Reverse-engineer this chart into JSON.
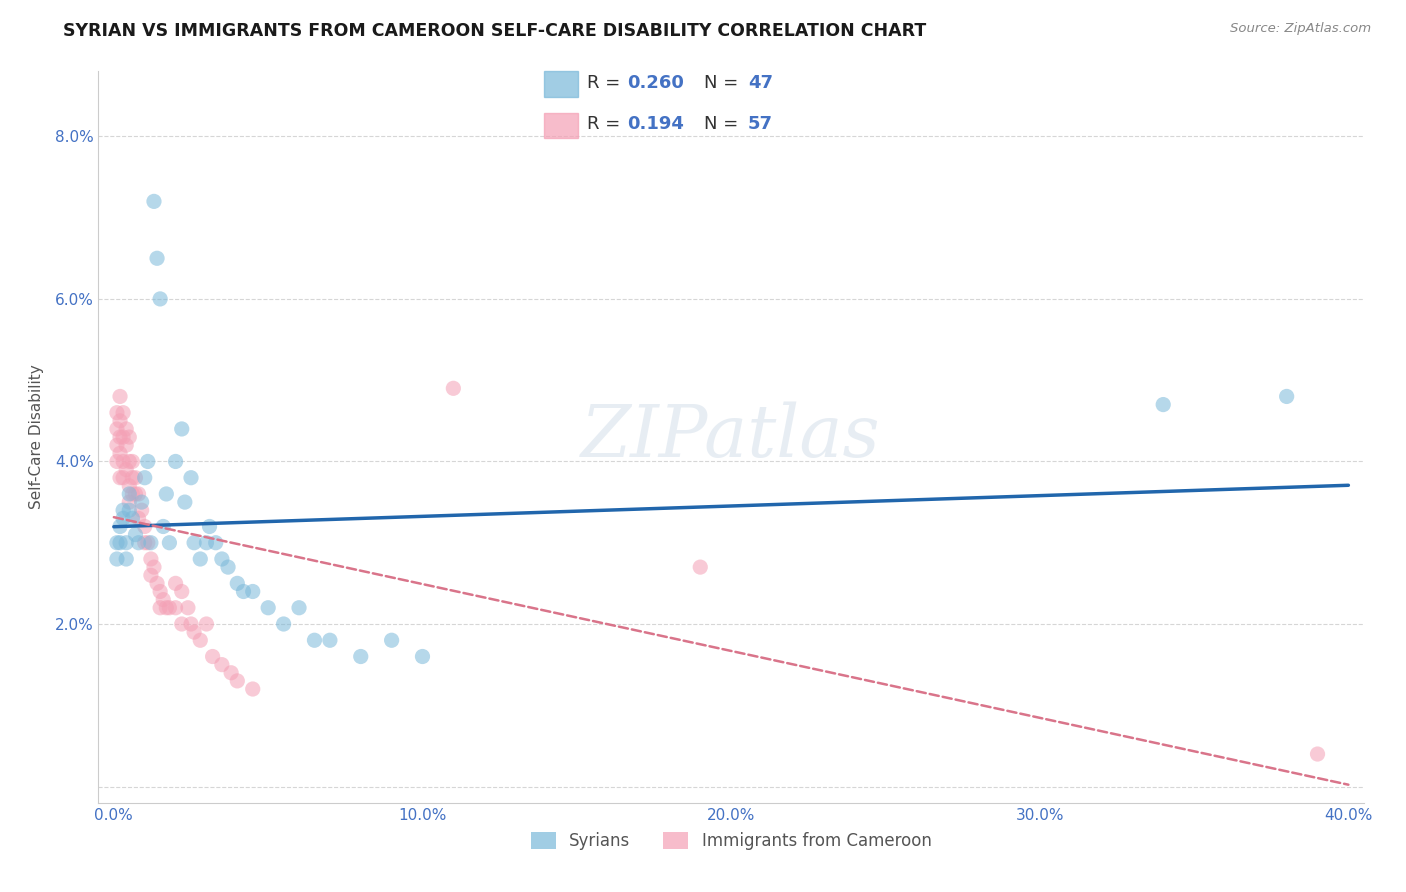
{
  "title": "SYRIAN VS IMMIGRANTS FROM CAMEROON SELF-CARE DISABILITY CORRELATION CHART",
  "source": "Source: ZipAtlas.com",
  "xlabel": "",
  "ylabel": "Self-Care Disability",
  "xlim": [
    -0.005,
    0.405
  ],
  "ylim": [
    -0.002,
    0.088
  ],
  "xticks": [
    0.0,
    0.1,
    0.2,
    0.3,
    0.4
  ],
  "xticklabels": [
    "0.0%",
    "10.0%",
    "20.0%",
    "30.0%",
    "40.0%"
  ],
  "yticks": [
    0.0,
    0.02,
    0.04,
    0.06,
    0.08
  ],
  "yticklabels": [
    "",
    "2.0%",
    "4.0%",
    "6.0%",
    "8.0%"
  ],
  "syrian_color": "#7ab8d9",
  "cameroon_color": "#f4a0b5",
  "syrian_line_color": "#2166ac",
  "cameroon_line_color": "#d9748a",
  "R_syrian": 0.26,
  "N_syrian": 47,
  "R_cameroon": 0.194,
  "N_cameroon": 57,
  "watermark_text": "ZIPatlas",
  "background_color": "#ffffff",
  "grid_color": "#cccccc",
  "syrian_points": [
    [
      0.001,
      0.03
    ],
    [
      0.001,
      0.028
    ],
    [
      0.002,
      0.032
    ],
    [
      0.002,
      0.03
    ],
    [
      0.003,
      0.034
    ],
    [
      0.003,
      0.033
    ],
    [
      0.004,
      0.03
    ],
    [
      0.004,
      0.028
    ],
    [
      0.005,
      0.036
    ],
    [
      0.005,
      0.034
    ],
    [
      0.006,
      0.033
    ],
    [
      0.007,
      0.031
    ],
    [
      0.008,
      0.03
    ],
    [
      0.009,
      0.035
    ],
    [
      0.01,
      0.038
    ],
    [
      0.011,
      0.04
    ],
    [
      0.012,
      0.03
    ],
    [
      0.013,
      0.072
    ],
    [
      0.014,
      0.065
    ],
    [
      0.015,
      0.06
    ],
    [
      0.016,
      0.032
    ],
    [
      0.017,
      0.036
    ],
    [
      0.018,
      0.03
    ],
    [
      0.02,
      0.04
    ],
    [
      0.022,
      0.044
    ],
    [
      0.023,
      0.035
    ],
    [
      0.025,
      0.038
    ],
    [
      0.026,
      0.03
    ],
    [
      0.028,
      0.028
    ],
    [
      0.03,
      0.03
    ],
    [
      0.031,
      0.032
    ],
    [
      0.033,
      0.03
    ],
    [
      0.035,
      0.028
    ],
    [
      0.037,
      0.027
    ],
    [
      0.04,
      0.025
    ],
    [
      0.042,
      0.024
    ],
    [
      0.045,
      0.024
    ],
    [
      0.05,
      0.022
    ],
    [
      0.055,
      0.02
    ],
    [
      0.06,
      0.022
    ],
    [
      0.065,
      0.018
    ],
    [
      0.07,
      0.018
    ],
    [
      0.08,
      0.016
    ],
    [
      0.09,
      0.018
    ],
    [
      0.1,
      0.016
    ],
    [
      0.34,
      0.047
    ],
    [
      0.38,
      0.048
    ]
  ],
  "cameroon_points": [
    [
      0.001,
      0.044
    ],
    [
      0.001,
      0.046
    ],
    [
      0.001,
      0.042
    ],
    [
      0.001,
      0.04
    ],
    [
      0.002,
      0.048
    ],
    [
      0.002,
      0.045
    ],
    [
      0.002,
      0.043
    ],
    [
      0.002,
      0.041
    ],
    [
      0.002,
      0.038
    ],
    [
      0.003,
      0.046
    ],
    [
      0.003,
      0.043
    ],
    [
      0.003,
      0.04
    ],
    [
      0.003,
      0.038
    ],
    [
      0.004,
      0.044
    ],
    [
      0.004,
      0.042
    ],
    [
      0.004,
      0.039
    ],
    [
      0.005,
      0.043
    ],
    [
      0.005,
      0.04
    ],
    [
      0.005,
      0.037
    ],
    [
      0.005,
      0.035
    ],
    [
      0.006,
      0.04
    ],
    [
      0.006,
      0.038
    ],
    [
      0.006,
      0.036
    ],
    [
      0.007,
      0.038
    ],
    [
      0.007,
      0.036
    ],
    [
      0.008,
      0.036
    ],
    [
      0.008,
      0.033
    ],
    [
      0.009,
      0.034
    ],
    [
      0.01,
      0.032
    ],
    [
      0.01,
      0.03
    ],
    [
      0.011,
      0.03
    ],
    [
      0.012,
      0.028
    ],
    [
      0.012,
      0.026
    ],
    [
      0.013,
      0.027
    ],
    [
      0.014,
      0.025
    ],
    [
      0.015,
      0.024
    ],
    [
      0.015,
      0.022
    ],
    [
      0.016,
      0.023
    ],
    [
      0.017,
      0.022
    ],
    [
      0.018,
      0.022
    ],
    [
      0.02,
      0.025
    ],
    [
      0.02,
      0.022
    ],
    [
      0.022,
      0.024
    ],
    [
      0.022,
      0.02
    ],
    [
      0.024,
      0.022
    ],
    [
      0.025,
      0.02
    ],
    [
      0.026,
      0.019
    ],
    [
      0.028,
      0.018
    ],
    [
      0.03,
      0.02
    ],
    [
      0.032,
      0.016
    ],
    [
      0.035,
      0.015
    ],
    [
      0.038,
      0.014
    ],
    [
      0.04,
      0.013
    ],
    [
      0.045,
      0.012
    ],
    [
      0.11,
      0.049
    ],
    [
      0.19,
      0.027
    ],
    [
      0.39,
      0.004
    ]
  ]
}
